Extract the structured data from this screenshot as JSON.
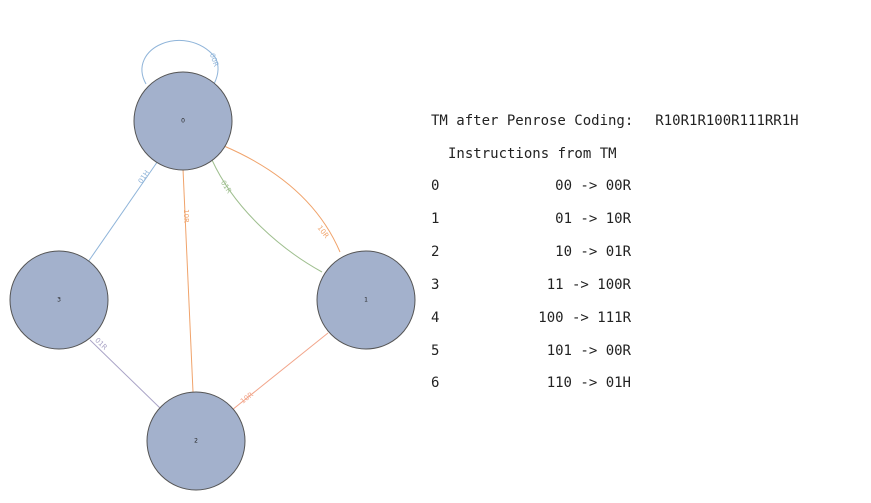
{
  "colors": {
    "node_fill": "#a3b1cc",
    "node_stroke": "#555555",
    "edge_blue": "#8fb4d9",
    "edge_orange": "#f0a36b",
    "edge_green": "#9fbf8f",
    "edge_purple": "#a9a3c6",
    "edge_salmon": "#f2a58a"
  },
  "graph": {
    "nodes": [
      {
        "id": "0",
        "label": "0"
      },
      {
        "id": "1",
        "label": "1"
      },
      {
        "id": "2",
        "label": "2"
      },
      {
        "id": "3",
        "label": "3"
      }
    ],
    "edges": [
      {
        "from": "0",
        "to": "0",
        "label": "00R",
        "color": "blue"
      },
      {
        "from": "0",
        "to": "1",
        "label": "10R",
        "color": "orange"
      },
      {
        "from": "1",
        "to": "0",
        "label": "01R",
        "color": "green"
      },
      {
        "from": "2",
        "to": "0",
        "label": "10R",
        "color": "orange"
      },
      {
        "from": "3",
        "to": "0",
        "label": "01H",
        "color": "blue"
      },
      {
        "from": "1",
        "to": "2",
        "label": "10R",
        "color": "salmon"
      },
      {
        "from": "2",
        "to": "3",
        "label": "01R",
        "color": "purple"
      }
    ]
  },
  "info": {
    "title_prefix": "TM after Penrose Coding:",
    "code": "R10R1R100R111RR1H",
    "subtitle": "Instructions from TM",
    "instructions": [
      {
        "index": "0",
        "text": "00 -> 00R"
      },
      {
        "index": "1",
        "text": "01 -> 10R"
      },
      {
        "index": "2",
        "text": "10 -> 01R"
      },
      {
        "index": "3",
        "text": "11 -> 100R"
      },
      {
        "index": "4",
        "text": "100 -> 111R"
      },
      {
        "index": "5",
        "text": "101 -> 00R"
      },
      {
        "index": "6",
        "text": "110 -> 01H"
      }
    ]
  }
}
